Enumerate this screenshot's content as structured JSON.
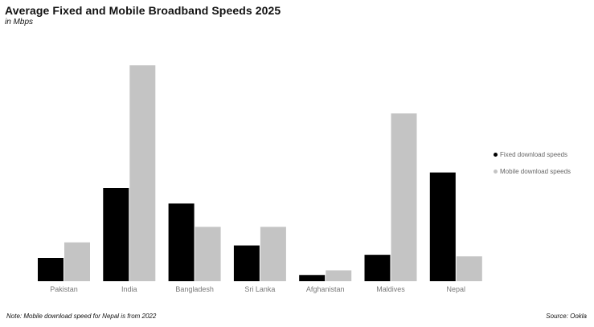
{
  "chart_data": {
    "type": "bar",
    "title": "Average Fixed and Mobile Broadband Speeds 2025",
    "subtitle": "in Mbps",
    "categories": [
      "Pakistan",
      "India",
      "Bangladesh",
      "Sri Lanka",
      "Afghanistan",
      "Maldives",
      "Nepal"
    ],
    "series": [
      {
        "name": "Fixed download speeds",
        "color": "#000000",
        "values": [
          15,
          60,
          50,
          23,
          4,
          17,
          70
        ]
      },
      {
        "name": "Mobile download speeds",
        "color": "#c4c4c4",
        "values": [
          25,
          139,
          35,
          35,
          7,
          108,
          16
        ]
      }
    ],
    "ylim": [
      0,
      150
    ],
    "grid": false,
    "legend_position": "right",
    "note": "Note: Mobile download speed for Nepal is from 2022",
    "source": "Source: Ookla"
  }
}
